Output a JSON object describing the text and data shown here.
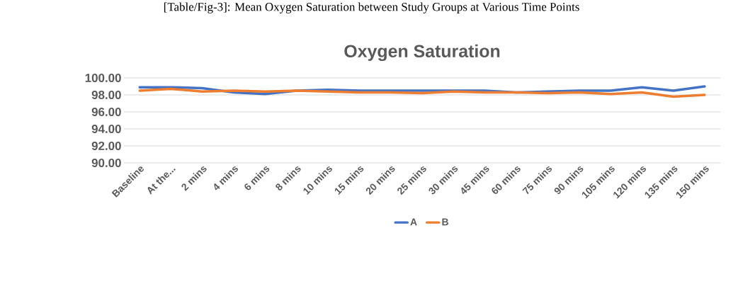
{
  "chart_data": {
    "type": "line",
    "title": "Oxygen Saturation",
    "annotations": [
      "[Table/Fig-3]: Mean Oxygen Saturation between Study Groups at Various Time Points"
    ],
    "categories": [
      "Baseline",
      "At the...",
      "2 mins",
      "4 mins",
      "6 mins",
      "8 mins",
      "10 mins",
      "15 mins",
      "20 mins",
      "25 mins",
      "30 mins",
      "45 mins",
      "60 mins",
      "75 mins",
      "90 mins",
      "105 mins",
      "120 mins",
      "135 mins",
      "150 mins"
    ],
    "series": [
      {
        "name": "A",
        "color": "#4472c4",
        "values": [
          98.9,
          98.9,
          98.8,
          98.3,
          98.1,
          98.5,
          98.6,
          98.5,
          98.5,
          98.5,
          98.5,
          98.5,
          98.3,
          98.4,
          98.5,
          98.5,
          98.9,
          98.5,
          99.0
        ]
      },
      {
        "name": "B",
        "color": "#ed7d31",
        "values": [
          98.5,
          98.7,
          98.4,
          98.5,
          98.4,
          98.5,
          98.4,
          98.3,
          98.3,
          98.2,
          98.4,
          98.3,
          98.3,
          98.2,
          98.3,
          98.1,
          98.3,
          97.8,
          98.0
        ]
      }
    ],
    "ylim": [
      90,
      100
    ],
    "yticks": [
      {
        "value": 90,
        "label": "90.00"
      },
      {
        "value": 92,
        "label": "92.00"
      },
      {
        "value": 94,
        "label": "94.00"
      },
      {
        "value": 96,
        "label": "96.00"
      },
      {
        "value": 98,
        "label": "98.00"
      },
      {
        "value": 100,
        "label": "100.00"
      }
    ],
    "grid": "y",
    "legend": "bottom",
    "marker": "none",
    "line_style": "solid"
  }
}
